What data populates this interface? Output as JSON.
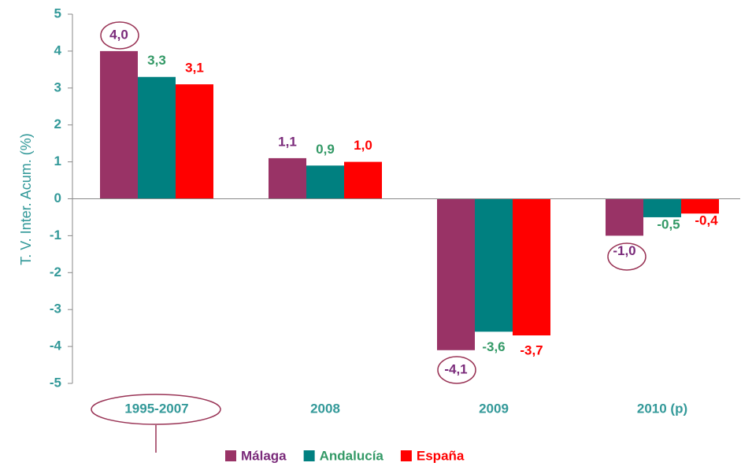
{
  "chart_data": {
    "type": "bar",
    "y_axis_label": "T. V. Inter. Acum. (%)",
    "categories": [
      "1995-2007",
      "2008",
      "2009",
      "2010 (p)"
    ],
    "series": [
      {
        "name": "Málaga",
        "color": "#993366",
        "label_color": "#7a2a7a",
        "values": [
          4.0,
          1.1,
          -4.1,
          -1.0
        ],
        "value_labels": [
          "4,0",
          "1,1",
          "-4,1",
          "-1,0"
        ]
      },
      {
        "name": "Andalucía",
        "color": "#008080",
        "label_color": "#339966",
        "values": [
          3.3,
          0.9,
          -3.6,
          -0.5
        ],
        "value_labels": [
          "3,3",
          "0,9",
          "-3,6",
          "-0,5"
        ]
      },
      {
        "name": "España",
        "color": "#ff0000",
        "label_color": "#ff0000",
        "values": [
          3.1,
          1.0,
          -3.7,
          -0.4
        ],
        "value_labels": [
          "3,1",
          "1,0",
          "-3,7",
          "-0,4"
        ]
      }
    ],
    "ylim": [
      -5,
      5
    ],
    "yticks": [
      -5,
      -4,
      -3,
      -2,
      -1,
      0,
      1,
      2,
      3,
      4,
      5
    ],
    "legend": "bottom"
  }
}
